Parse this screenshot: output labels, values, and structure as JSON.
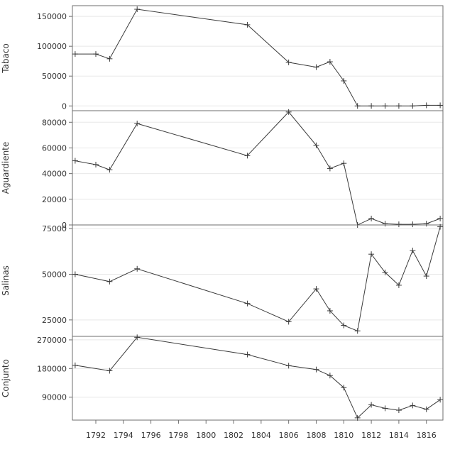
{
  "chart_data": [
    {
      "type": "line",
      "ylabel": "Tabaco",
      "xlim": [
        1790.3,
        1817.2
      ],
      "ylim": [
        -8000,
        168000
      ],
      "yticks": [
        0,
        50000,
        100000,
        150000
      ],
      "grid": true,
      "x": [
        1790.5,
        1792,
        1793,
        1795,
        1803,
        1806,
        1808,
        1809,
        1810,
        1811,
        1812,
        1813,
        1814,
        1815,
        1816,
        1817
      ],
      "values": [
        87000,
        87000,
        79000,
        162000,
        136000,
        73000,
        65000,
        74000,
        42000,
        0,
        0,
        0,
        0,
        0,
        1000,
        1000
      ]
    },
    {
      "type": "line",
      "ylabel": "Aguardiente",
      "xlim": [
        1790.3,
        1817.2
      ],
      "ylim": [
        0,
        89000
      ],
      "yticks": [
        0,
        20000,
        40000,
        60000,
        80000
      ],
      "grid": true,
      "x": [
        1790.5,
        1792,
        1793,
        1795,
        1803,
        1806,
        1808,
        1809,
        1810,
        1811,
        1812,
        1813,
        1814,
        1815,
        1816,
        1817
      ],
      "values": [
        50000,
        47000,
        43000,
        79000,
        54000,
        88000,
        62000,
        44000,
        48000,
        0,
        5000,
        1000,
        500,
        500,
        1000,
        5000
      ]
    },
    {
      "type": "line",
      "ylabel": "Salinas",
      "xlim": [
        1790.3,
        1817.2
      ],
      "ylim": [
        16000,
        77000
      ],
      "yticks": [
        25000,
        50000,
        75000
      ],
      "grid": true,
      "x": [
        1790.5,
        1793,
        1795,
        1803,
        1806,
        1808,
        1809,
        1810,
        1811,
        1812,
        1813,
        1814,
        1815,
        1816,
        1817
      ],
      "values": [
        50000,
        46000,
        53000,
        34000,
        24000,
        42000,
        30000,
        22000,
        19000,
        61000,
        51000,
        44000,
        63000,
        49000,
        76000
      ]
    },
    {
      "type": "line",
      "ylabel": "Conjunto",
      "xlim": [
        1790.3,
        1817.2
      ],
      "ylim": [
        18000,
        281000
      ],
      "yticks": [
        90000,
        180000,
        270000
      ],
      "grid": true,
      "xticks": [
        1792,
        1794,
        1796,
        1798,
        1800,
        1802,
        1804,
        1806,
        1808,
        1810,
        1812,
        1814,
        1816
      ],
      "x": [
        1790.5,
        1793,
        1795,
        1803,
        1806,
        1808,
        1809,
        1810,
        1811,
        1812,
        1813,
        1814,
        1815,
        1816,
        1817
      ],
      "values": [
        190000,
        173000,
        278000,
        224000,
        189000,
        177000,
        158000,
        120000,
        25000,
        66000,
        55000,
        49000,
        64000,
        52000,
        82000
      ]
    }
  ]
}
